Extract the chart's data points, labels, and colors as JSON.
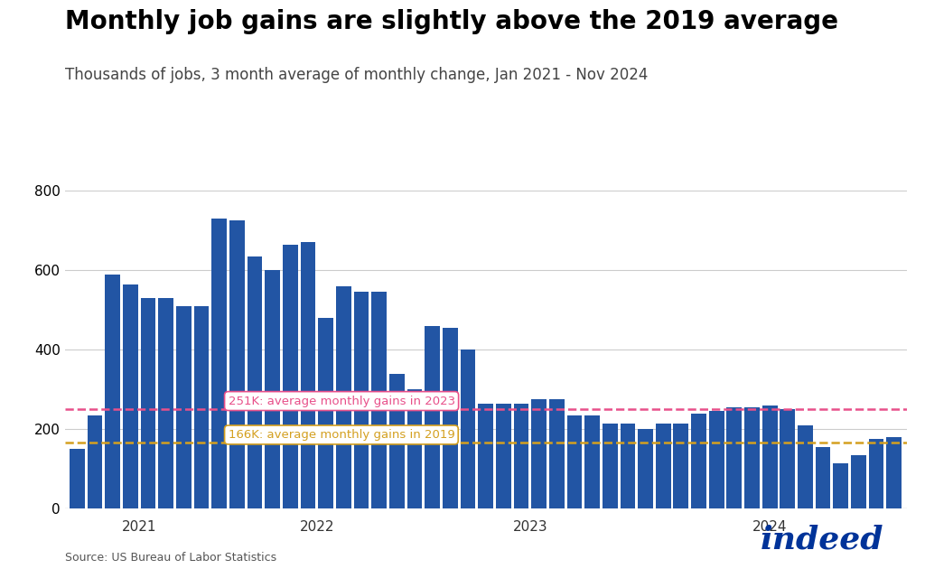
{
  "title": "Monthly job gains are slightly above the 2019 average",
  "subtitle": "Thousands of jobs, 3 month average of monthly change, Jan 2021 - Nov 2024",
  "source": "Source: US Bureau of Labor Statistics",
  "bar_color": "#2255a4",
  "line_2023_value": 251,
  "line_2019_value": 166,
  "line_2023_color": "#e8508a",
  "line_2019_color": "#d4a020",
  "line_2023_label": "251K: average monthly gains in 2023",
  "line_2019_label": "166K: average monthly gains in 2019",
  "ylim": [
    0,
    800
  ],
  "yticks": [
    0,
    200,
    400,
    600,
    800
  ],
  "background_color": "#ffffff",
  "values": [
    150,
    235,
    590,
    565,
    530,
    530,
    510,
    510,
    730,
    725,
    635,
    600,
    665,
    670,
    480,
    560,
    545,
    545,
    340,
    300,
    460,
    455,
    400,
    265,
    265,
    265,
    275,
    275,
    235,
    235,
    215,
    215,
    200,
    215,
    215,
    240,
    245,
    255,
    255,
    260,
    250,
    210,
    155,
    115,
    135,
    175,
    180
  ],
  "x_labels": [
    "2021",
    "2022",
    "2023",
    "2024"
  ],
  "indeed_color": "#003399"
}
